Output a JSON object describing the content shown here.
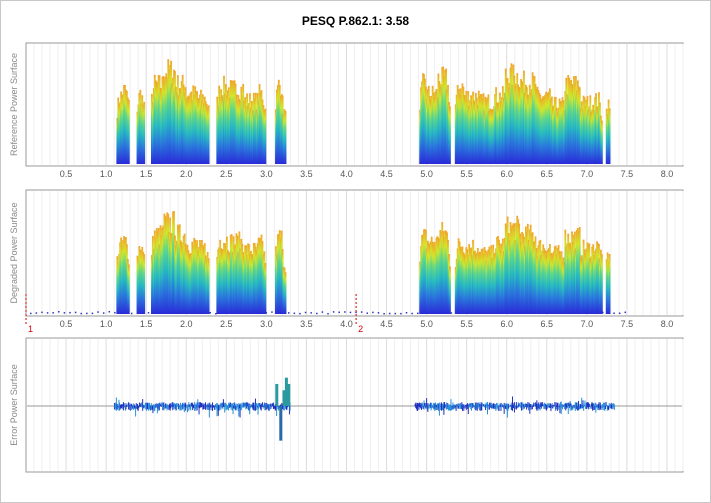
{
  "title": "PESQ P.862.1: 3.58",
  "chart_data": [
    {
      "type": "area",
      "ylabel": "Reference Power Surface",
      "x_ticks": [
        "0.5",
        "1.0",
        "1.5",
        "2.0",
        "2.5",
        "3.0",
        "3.5",
        "4.0",
        "4.5",
        "5.0",
        "5.5",
        "6.0",
        "6.5",
        "7.0",
        "7.5",
        "8.0"
      ],
      "xlim": [
        0.0,
        8.2
      ],
      "ylim": [
        0,
        1
      ],
      "grid": "vertical",
      "segments": [
        [
          1.12,
          1.28
        ],
        [
          1.37,
          1.47
        ],
        [
          1.55,
          2.28
        ],
        [
          2.37,
          2.98
        ],
        [
          3.1,
          3.23
        ],
        [
          4.9,
          5.28
        ],
        [
          5.35,
          7.18
        ],
        [
          7.23,
          7.28
        ]
      ],
      "peaks": [
        [
          1.13,
          0.6
        ],
        [
          1.25,
          0.65
        ],
        [
          1.42,
          0.62
        ],
        [
          1.6,
          0.7
        ],
        [
          1.8,
          0.82
        ],
        [
          1.92,
          0.7
        ],
        [
          2.05,
          0.62
        ],
        [
          2.2,
          0.58
        ],
        [
          2.4,
          0.68
        ],
        [
          2.6,
          0.66
        ],
        [
          2.82,
          0.56
        ],
        [
          2.95,
          0.62
        ],
        [
          3.15,
          0.7
        ],
        [
          3.22,
          0.55
        ],
        [
          4.92,
          0.7
        ],
        [
          5.05,
          0.62
        ],
        [
          5.2,
          0.75
        ],
        [
          5.35,
          0.68
        ],
        [
          5.55,
          0.6
        ],
        [
          5.75,
          0.55
        ],
        [
          5.9,
          0.6
        ],
        [
          6.05,
          0.78
        ],
        [
          6.25,
          0.72
        ],
        [
          6.45,
          0.6
        ],
        [
          6.62,
          0.52
        ],
        [
          6.8,
          0.7
        ],
        [
          7.0,
          0.54
        ],
        [
          7.15,
          0.56
        ],
        [
          7.25,
          0.6
        ]
      ]
    },
    {
      "type": "area",
      "ylabel": "Degraded Power Surface",
      "x_ticks": [
        "0.5",
        "1.0",
        "1.5",
        "2.0",
        "2.5",
        "3.0",
        "3.5",
        "4.0",
        "4.5",
        "5.0",
        "5.5",
        "6.0",
        "6.5",
        "7.0",
        "7.5",
        "8.0"
      ],
      "xlim": [
        0.0,
        8.2
      ],
      "ylim": [
        0,
        1
      ],
      "grid": "vertical",
      "segments": [
        [
          1.12,
          1.28
        ],
        [
          1.37,
          1.47
        ],
        [
          1.55,
          2.28
        ],
        [
          2.37,
          2.98
        ],
        [
          3.1,
          3.23
        ],
        [
          4.9,
          5.28
        ],
        [
          5.35,
          7.18
        ],
        [
          7.23,
          7.28
        ]
      ],
      "peaks": [
        [
          1.13,
          0.58
        ],
        [
          1.25,
          0.62
        ],
        [
          1.42,
          0.6
        ],
        [
          1.6,
          0.68
        ],
        [
          1.8,
          0.78
        ],
        [
          1.92,
          0.68
        ],
        [
          2.05,
          0.6
        ],
        [
          2.2,
          0.56
        ],
        [
          2.4,
          0.64
        ],
        [
          2.6,
          0.62
        ],
        [
          2.82,
          0.55
        ],
        [
          2.95,
          0.6
        ],
        [
          3.15,
          0.66
        ],
        [
          3.22,
          0.52
        ],
        [
          4.92,
          0.66
        ],
        [
          5.05,
          0.62
        ],
        [
          5.2,
          0.7
        ],
        [
          5.35,
          0.6
        ],
        [
          5.55,
          0.58
        ],
        [
          5.75,
          0.52
        ],
        [
          5.9,
          0.6
        ],
        [
          6.05,
          0.74
        ],
        [
          6.25,
          0.68
        ],
        [
          6.45,
          0.58
        ],
        [
          6.62,
          0.52
        ],
        [
          6.8,
          0.66
        ],
        [
          7.0,
          0.56
        ],
        [
          7.15,
          0.58
        ],
        [
          7.25,
          0.58
        ]
      ],
      "markers": [
        {
          "x": 0.0,
          "label": "1"
        },
        {
          "x": 4.12,
          "label": "2"
        }
      ]
    },
    {
      "type": "line",
      "ylabel": "Error Power Surface",
      "xlim": [
        0.0,
        8.2
      ],
      "ylim": [
        -1,
        1
      ],
      "grid": "vertical",
      "segments": [
        [
          1.1,
          3.3
        ],
        [
          4.85,
          7.35
        ]
      ],
      "spikes": [
        [
          3.13,
          0.35
        ],
        [
          3.18,
          -0.55
        ],
        [
          3.22,
          0.25
        ],
        [
          3.25,
          0.45
        ],
        [
          3.28,
          0.35
        ]
      ]
    }
  ]
}
